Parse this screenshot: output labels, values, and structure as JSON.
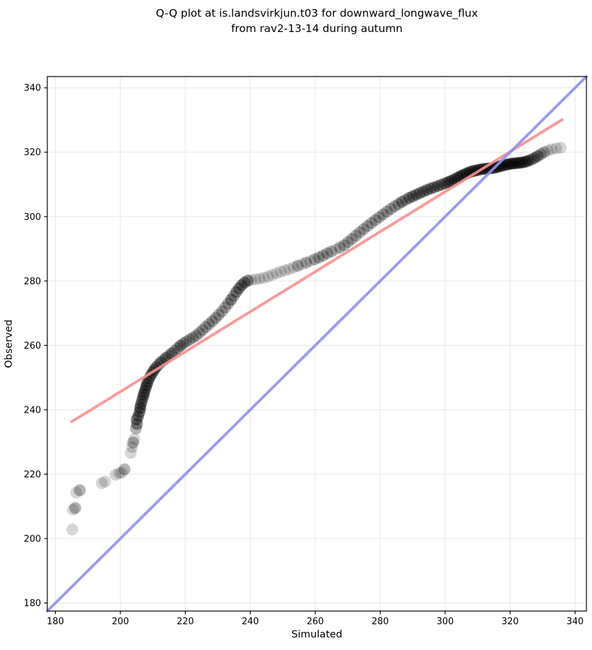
{
  "chart_data": {
    "type": "scatter",
    "title_lines": [
      "Q-Q plot at is.landsvirkjun.t03 for downward_longwave_flux",
      "from rav2-13-14 during autumn"
    ],
    "xlabel": "Simulated",
    "ylabel": "Observed",
    "xlim": [
      177.5,
      343.5
    ],
    "ylim": [
      177.5,
      343.5
    ],
    "xticks": [
      180,
      200,
      220,
      240,
      260,
      280,
      300,
      320,
      340
    ],
    "yticks": [
      180,
      200,
      220,
      240,
      260,
      280,
      300,
      320,
      340
    ],
    "grid": true,
    "colors": {
      "grid": "#ececec",
      "spine": "#000000",
      "tick": "#000000",
      "scatter": "#000000",
      "identity_line": "#9191ef",
      "fit_line": "#f79090"
    },
    "identity_line": {
      "from": [
        177.5,
        177.5
      ],
      "to": [
        343.5,
        343.5
      ]
    },
    "fit_line": {
      "from": [
        185.0,
        236.3
      ],
      "to": [
        336.0,
        330.1
      ]
    },
    "scatter": {
      "marker_radius_px": 8.5,
      "base_alpha": 0.16,
      "points_format": [
        "simulated",
        "observed",
        "overlap_count"
      ],
      "points": [
        [
          185.2,
          202.8,
          1
        ],
        [
          185.4,
          209.0,
          1
        ],
        [
          186.1,
          209.5,
          2
        ],
        [
          186.4,
          214.3,
          1
        ],
        [
          187.5,
          215.0,
          2
        ],
        [
          194.3,
          217.2,
          1
        ],
        [
          195.3,
          217.7,
          1
        ],
        [
          198.5,
          219.8,
          1
        ],
        [
          199.6,
          220.3,
          1
        ],
        [
          200.4,
          220.5,
          1
        ],
        [
          201.3,
          221.5,
          2
        ],
        [
          203.2,
          226.6,
          1
        ],
        [
          203.6,
          228.4,
          1
        ],
        [
          203.9,
          229.8,
          2
        ],
        [
          204.3,
          230.9,
          1
        ],
        [
          204.8,
          234.2,
          2
        ],
        [
          205.1,
          235.6,
          3
        ],
        [
          205.0,
          237.0,
          3
        ],
        [
          205.5,
          238.0,
          3
        ],
        [
          205.9,
          239.3,
          3
        ],
        [
          206.1,
          240.5,
          4
        ],
        [
          206.3,
          241.6,
          3
        ],
        [
          206.6,
          242.7,
          3
        ],
        [
          206.9,
          243.8,
          3
        ],
        [
          207.2,
          244.8,
          4
        ],
        [
          207.5,
          245.8,
          3
        ],
        [
          207.8,
          246.8,
          3
        ],
        [
          208.1,
          247.8,
          4
        ],
        [
          208.5,
          248.8,
          3
        ],
        [
          208.9,
          249.8,
          3
        ],
        [
          209.4,
          250.7,
          3
        ],
        [
          209.9,
          251.6,
          3
        ],
        [
          210.4,
          252.4,
          3
        ],
        [
          211.0,
          253.2,
          3
        ],
        [
          211.7,
          254.0,
          2
        ],
        [
          212.4,
          254.7,
          3
        ],
        [
          213.2,
          255.4,
          2
        ],
        [
          214.0,
          256.1,
          3
        ],
        [
          214.9,
          256.8,
          2
        ],
        [
          215.8,
          257.5,
          3
        ],
        [
          216.7,
          258.3,
          2
        ],
        [
          217.6,
          259.1,
          2
        ],
        [
          218.5,
          259.9,
          3
        ],
        [
          219.4,
          260.6,
          2
        ],
        [
          220.3,
          261.2,
          2
        ],
        [
          221.3,
          261.8,
          2
        ],
        [
          222.3,
          262.4,
          2
        ],
        [
          223.3,
          263.0,
          2
        ],
        [
          224.3,
          263.9,
          2
        ],
        [
          225.3,
          264.8,
          2
        ],
        [
          226.3,
          265.7,
          2
        ],
        [
          227.3,
          266.6,
          2
        ],
        [
          228.3,
          267.5,
          2
        ],
        [
          229.3,
          268.5,
          2
        ],
        [
          230.3,
          269.5,
          2
        ],
        [
          231.3,
          270.6,
          2
        ],
        [
          232.3,
          271.8,
          2
        ],
        [
          233.2,
          273.0,
          2
        ],
        [
          234.1,
          274.2,
          3
        ],
        [
          234.9,
          275.4,
          2
        ],
        [
          235.7,
          276.6,
          3
        ],
        [
          236.5,
          277.7,
          3
        ],
        [
          237.3,
          278.7,
          3
        ],
        [
          238.2,
          279.5,
          3
        ],
        [
          239.2,
          280.1,
          3
        ],
        [
          240.3,
          280.3,
          1
        ],
        [
          241.6,
          280.5,
          1
        ],
        [
          242.9,
          280.7,
          1
        ],
        [
          244.2,
          281.0,
          1
        ],
        [
          245.5,
          281.4,
          1
        ],
        [
          246.8,
          281.9,
          1
        ],
        [
          248.1,
          282.4,
          1
        ],
        [
          249.4,
          282.9,
          1
        ],
        [
          250.7,
          283.3,
          1
        ],
        [
          252.0,
          283.7,
          1
        ],
        [
          253.3,
          284.2,
          1
        ],
        [
          254.6,
          284.7,
          2
        ],
        [
          255.9,
          285.2,
          1
        ],
        [
          257.2,
          285.7,
          2
        ],
        [
          258.5,
          286.2,
          1
        ],
        [
          259.8,
          286.7,
          2
        ],
        [
          261.1,
          287.3,
          2
        ],
        [
          262.4,
          287.9,
          2
        ],
        [
          263.7,
          288.6,
          2
        ],
        [
          265.0,
          289.2,
          2
        ],
        [
          266.3,
          289.8,
          1
        ],
        [
          267.6,
          290.4,
          2
        ],
        [
          268.9,
          291.1,
          2
        ],
        [
          270.1,
          292.1,
          2
        ],
        [
          271.3,
          293.1,
          2
        ],
        [
          272.5,
          294.1,
          2
        ],
        [
          273.7,
          295.1,
          2
        ],
        [
          274.9,
          296.1,
          2
        ],
        [
          276.1,
          297.1,
          2
        ],
        [
          277.3,
          298.0,
          2
        ],
        [
          278.5,
          298.9,
          2
        ],
        [
          279.7,
          299.8,
          2
        ],
        [
          280.9,
          300.7,
          2
        ],
        [
          282.1,
          301.6,
          2
        ],
        [
          283.3,
          302.4,
          2
        ],
        [
          284.5,
          303.2,
          2
        ],
        [
          285.6,
          303.9,
          2
        ],
        [
          286.7,
          304.6,
          3
        ],
        [
          287.8,
          305.2,
          2
        ],
        [
          288.9,
          305.8,
          3
        ],
        [
          290.0,
          306.3,
          3
        ],
        [
          291.1,
          306.8,
          3
        ],
        [
          292.2,
          307.3,
          3
        ],
        [
          293.3,
          307.8,
          3
        ],
        [
          294.4,
          308.3,
          3
        ],
        [
          295.5,
          308.7,
          3
        ],
        [
          296.6,
          309.1,
          3
        ],
        [
          297.7,
          309.5,
          3
        ],
        [
          298.8,
          309.9,
          3
        ],
        [
          299.9,
          310.3,
          3
        ],
        [
          300.9,
          310.7,
          4
        ],
        [
          301.9,
          311.1,
          4
        ],
        [
          302.9,
          311.6,
          4
        ],
        [
          303.9,
          312.1,
          4
        ],
        [
          304.8,
          312.6,
          4
        ],
        [
          305.7,
          313.0,
          4
        ],
        [
          306.6,
          313.4,
          4
        ],
        [
          307.5,
          313.8,
          4
        ],
        [
          308.4,
          314.1,
          4
        ],
        [
          309.3,
          314.3,
          4
        ],
        [
          310.2,
          314.5,
          4
        ],
        [
          311.1,
          314.7,
          4
        ],
        [
          312.0,
          314.8,
          4
        ],
        [
          312.9,
          314.9,
          4
        ],
        [
          313.8,
          315.0,
          5
        ],
        [
          314.7,
          315.1,
          4
        ],
        [
          315.6,
          315.3,
          5
        ],
        [
          316.5,
          315.5,
          4
        ],
        [
          317.4,
          315.8,
          5
        ],
        [
          318.3,
          316.0,
          4
        ],
        [
          319.2,
          316.2,
          5
        ],
        [
          320.1,
          316.4,
          4
        ],
        [
          321.0,
          316.5,
          5
        ],
        [
          321.9,
          316.6,
          4
        ],
        [
          322.8,
          316.7,
          5
        ],
        [
          323.7,
          316.8,
          4
        ],
        [
          324.6,
          317.0,
          4
        ],
        [
          325.5,
          317.3,
          4
        ],
        [
          326.5,
          317.7,
          3
        ],
        [
          327.5,
          318.2,
          3
        ],
        [
          328.5,
          318.8,
          3
        ],
        [
          329.5,
          319.4,
          2
        ],
        [
          330.5,
          320.0,
          2
        ],
        [
          331.6,
          320.5,
          1
        ],
        [
          332.8,
          320.9,
          1
        ],
        [
          334.2,
          321.2,
          1
        ],
        [
          335.6,
          321.4,
          1
        ]
      ]
    }
  }
}
